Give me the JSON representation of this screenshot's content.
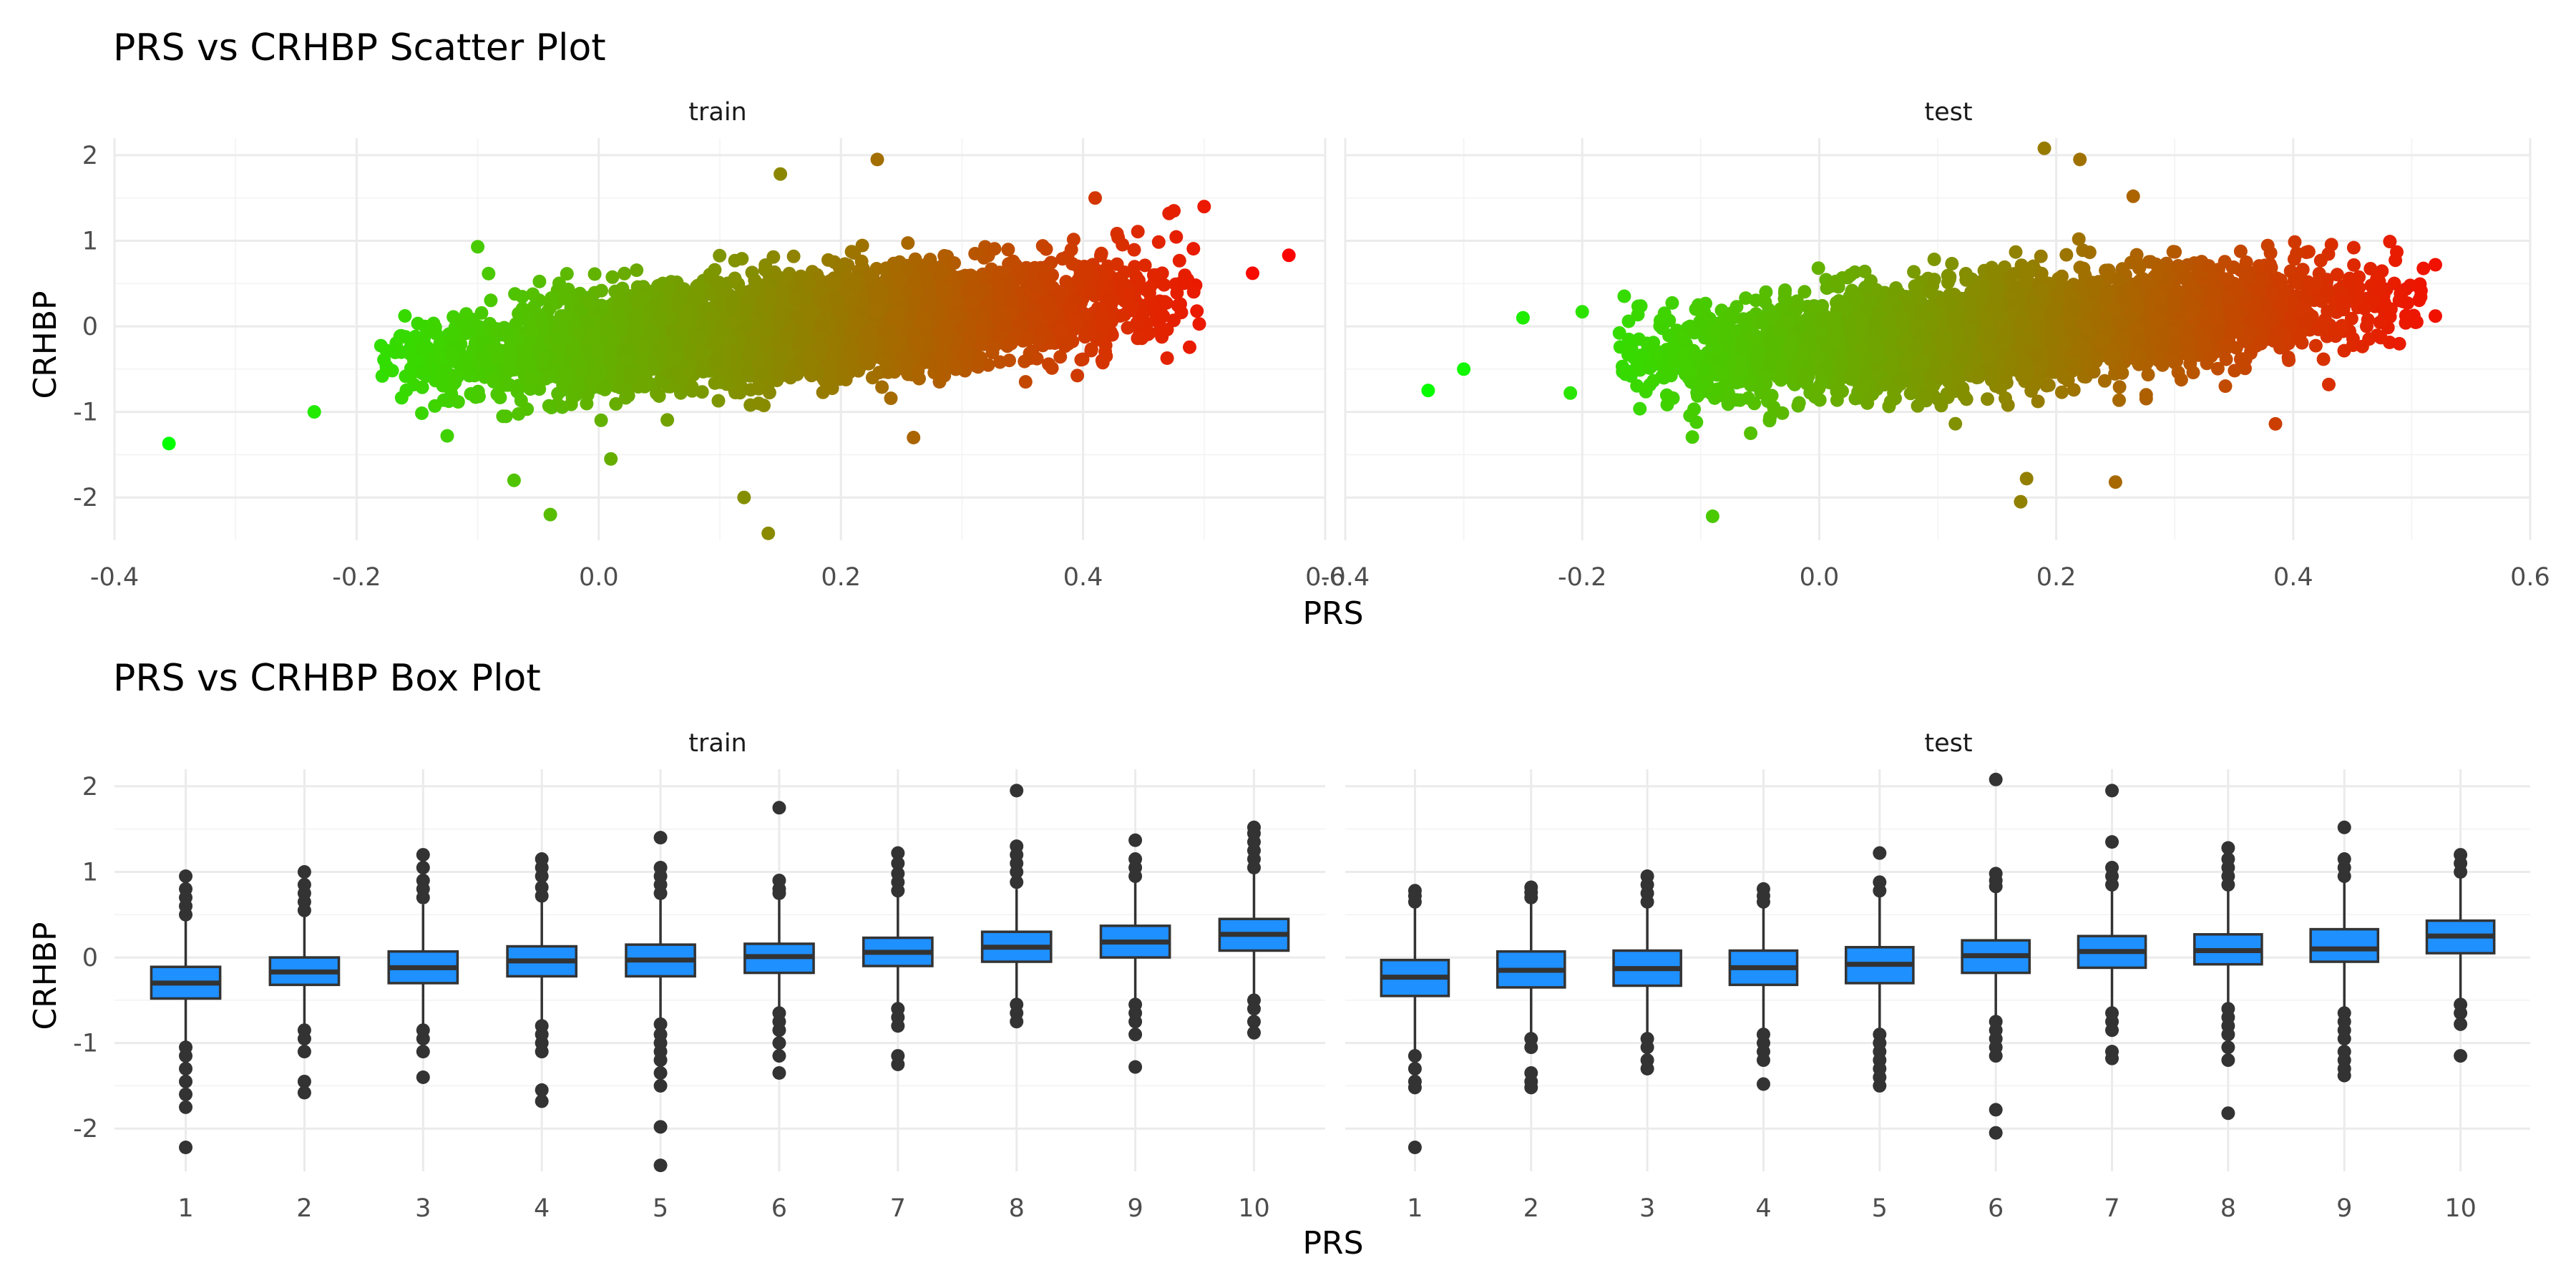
{
  "chart_data": [
    {
      "type": "scatter",
      "title": "PRS vs CRHBP Scatter Plot",
      "xlabel": "PRS",
      "ylabel": "CRHBP",
      "facets": [
        "train",
        "test"
      ],
      "xlim": [
        -0.4,
        0.6
      ],
      "ylim": [
        -2.5,
        2.2
      ],
      "x_ticks": [
        "-0.4",
        "-0.2",
        "0.0",
        "0.2",
        "0.4",
        "0.6"
      ],
      "y_ticks": [
        "-2",
        "-1",
        "0",
        "1",
        "2"
      ],
      "color_scale": {
        "low": "#00ff00",
        "high": "#ff0000",
        "mapped_to": "PRS"
      },
      "grid": true,
      "legend": "none",
      "train": {
        "trend": {
          "slope": 1.1,
          "intercept": -0.2
        },
        "core_x_range": [
          -0.18,
          0.5
        ],
        "outliers": [
          [
            -0.355,
            -1.37
          ],
          [
            -0.235,
            -1.0
          ],
          [
            -0.1,
            0.93
          ],
          [
            0.15,
            1.78
          ],
          [
            0.23,
            1.95
          ],
          [
            0.12,
            -2.0
          ],
          [
            0.14,
            -2.42
          ],
          [
            -0.04,
            -2.2
          ],
          [
            -0.07,
            -1.8
          ],
          [
            0.41,
            1.5
          ],
          [
            0.475,
            1.35
          ],
          [
            0.5,
            1.4
          ],
          [
            0.57,
            0.83
          ],
          [
            0.54,
            0.62
          ],
          [
            0.26,
            -1.3
          ],
          [
            0.01,
            -1.55
          ]
        ]
      },
      "test": {
        "trend": {
          "slope": 1.1,
          "intercept": -0.21
        },
        "core_x_range": [
          -0.17,
          0.51
        ],
        "outliers": [
          [
            -0.33,
            -0.75
          ],
          [
            -0.3,
            -0.5
          ],
          [
            -0.25,
            0.1
          ],
          [
            -0.21,
            -0.78
          ],
          [
            -0.2,
            0.17
          ],
          [
            -0.09,
            -2.22
          ],
          [
            0.19,
            2.08
          ],
          [
            0.22,
            1.95
          ],
          [
            0.265,
            1.52
          ],
          [
            0.17,
            -2.05
          ],
          [
            0.175,
            -1.78
          ],
          [
            0.25,
            -1.82
          ],
          [
            0.385,
            -1.14
          ],
          [
            0.52,
            0.72
          ],
          [
            0.52,
            0.12
          ],
          [
            0.43,
            -0.68
          ]
        ]
      }
    },
    {
      "type": "box",
      "title": "PRS vs CRHBP Box Plot",
      "xlabel": "PRS",
      "ylabel": "CRHBP",
      "facets": [
        "train",
        "test"
      ],
      "categories": [
        "1",
        "2",
        "3",
        "4",
        "5",
        "6",
        "7",
        "8",
        "9",
        "10"
      ],
      "ylim": [
        -2.5,
        2.2
      ],
      "y_ticks": [
        "-2",
        "-1",
        "0",
        "1",
        "2"
      ],
      "box_color": "#1e90ff",
      "outlier_color": "#333333",
      "grid": true,
      "train": {
        "q1": [
          -0.48,
          -0.32,
          -0.3,
          -0.22,
          -0.22,
          -0.18,
          -0.1,
          -0.05,
          0.0,
          0.08
        ],
        "median": [
          -0.3,
          -0.17,
          -0.12,
          -0.04,
          -0.03,
          0.01,
          0.06,
          0.12,
          0.18,
          0.27
        ],
        "q3": [
          -0.11,
          0.0,
          0.07,
          0.13,
          0.15,
          0.16,
          0.23,
          0.3,
          0.37,
          0.45
        ],
        "whisker_low": [
          -1.0,
          -0.8,
          -0.78,
          -0.75,
          -0.72,
          -0.6,
          -0.55,
          -0.5,
          -0.5,
          -0.47
        ],
        "whisker_high": [
          0.45,
          0.48,
          0.62,
          0.65,
          0.7,
          0.7,
          0.72,
          0.8,
          0.88,
          0.98
        ],
        "outliers_high": [
          [
            0.5,
            0.6,
            0.7,
            0.8,
            0.95
          ],
          [
            0.55,
            0.65,
            0.75,
            0.85,
            1.0
          ],
          [
            0.7,
            0.8,
            0.9,
            1.05,
            1.2
          ],
          [
            0.72,
            0.82,
            0.95,
            1.05,
            1.15
          ],
          [
            0.75,
            0.85,
            0.95,
            1.05,
            1.4
          ],
          [
            0.75,
            0.8,
            0.9,
            1.75
          ],
          [
            0.78,
            0.88,
            0.98,
            1.1,
            1.22
          ],
          [
            0.88,
            1.0,
            1.1,
            1.2,
            1.3,
            1.95
          ],
          [
            0.95,
            1.05,
            1.15,
            1.37
          ],
          [
            1.05,
            1.15,
            1.25,
            1.35,
            1.45,
            1.52
          ]
        ],
        "outliers_low": [
          [
            -1.05,
            -1.15,
            -1.3,
            -1.45,
            -1.6,
            -1.75,
            -2.22
          ],
          [
            -0.85,
            -0.95,
            -1.1,
            -1.45,
            -1.58
          ],
          [
            -0.85,
            -0.95,
            -1.1,
            -1.4
          ],
          [
            -0.8,
            -0.9,
            -1.0,
            -1.1,
            -1.55,
            -1.68
          ],
          [
            -0.78,
            -0.9,
            -1.0,
            -1.1,
            -1.2,
            -1.35,
            -1.5,
            -1.98,
            -2.43
          ],
          [
            -0.65,
            -0.75,
            -0.85,
            -1.0,
            -1.15,
            -1.35
          ],
          [
            -0.6,
            -0.7,
            -0.8,
            -1.15,
            -1.25
          ],
          [
            -0.55,
            -0.65,
            -0.75
          ],
          [
            -0.55,
            -0.65,
            -0.75,
            -0.9,
            -1.28
          ],
          [
            -0.5,
            -0.6,
            -0.75,
            -0.88
          ]
        ]
      },
      "test": {
        "q1": [
          -0.45,
          -0.35,
          -0.33,
          -0.32,
          -0.3,
          -0.18,
          -0.12,
          -0.08,
          -0.05,
          0.05
        ],
        "median": [
          -0.23,
          -0.15,
          -0.13,
          -0.12,
          -0.08,
          0.02,
          0.07,
          0.08,
          0.1,
          0.25
        ],
        "q3": [
          -0.03,
          0.07,
          0.08,
          0.08,
          0.12,
          0.2,
          0.25,
          0.27,
          0.33,
          0.43
        ],
        "whisker_low": [
          -1.1,
          -0.9,
          -0.88,
          -0.85,
          -0.85,
          -0.7,
          -0.6,
          -0.55,
          -0.6,
          -0.5
        ],
        "whisker_high": [
          0.6,
          0.65,
          0.6,
          0.6,
          0.72,
          0.78,
          0.8,
          0.8,
          0.88,
          0.95
        ],
        "outliers_high": [
          [
            0.65,
            0.72,
            0.78
          ],
          [
            0.7,
            0.76,
            0.82
          ],
          [
            0.65,
            0.75,
            0.85,
            0.95
          ],
          [
            0.65,
            0.72,
            0.8
          ],
          [
            0.78,
            0.88,
            1.22
          ],
          [
            0.83,
            0.9,
            0.98,
            2.08
          ],
          [
            0.85,
            0.95,
            1.05,
            1.35,
            1.95
          ],
          [
            0.85,
            0.95,
            1.05,
            1.15,
            1.28
          ],
          [
            0.95,
            1.05,
            1.15,
            1.52
          ],
          [
            1.0,
            1.1,
            1.2
          ]
        ],
        "outliers_low": [
          [
            -1.15,
            -1.3,
            -1.45,
            -1.52,
            -2.22
          ],
          [
            -0.95,
            -1.05,
            -1.35,
            -1.45,
            -1.52
          ],
          [
            -0.95,
            -1.05,
            -1.2,
            -1.3
          ],
          [
            -0.9,
            -1.0,
            -1.1,
            -1.2,
            -1.48
          ],
          [
            -0.9,
            -1.0,
            -1.1,
            -1.2,
            -1.3,
            -1.4,
            -1.5
          ],
          [
            -0.75,
            -0.85,
            -0.95,
            -1.05,
            -1.15,
            -1.78,
            -2.05
          ],
          [
            -0.65,
            -0.75,
            -0.85,
            -1.1,
            -1.18
          ],
          [
            -0.6,
            -0.7,
            -0.8,
            -0.9,
            -1.05,
            -1.2,
            -1.82
          ],
          [
            -0.65,
            -0.75,
            -0.85,
            -0.95,
            -1.1,
            -1.2,
            -1.3,
            -1.38
          ],
          [
            -0.55,
            -0.65,
            -0.78,
            -1.15
          ]
        ]
      }
    }
  ]
}
